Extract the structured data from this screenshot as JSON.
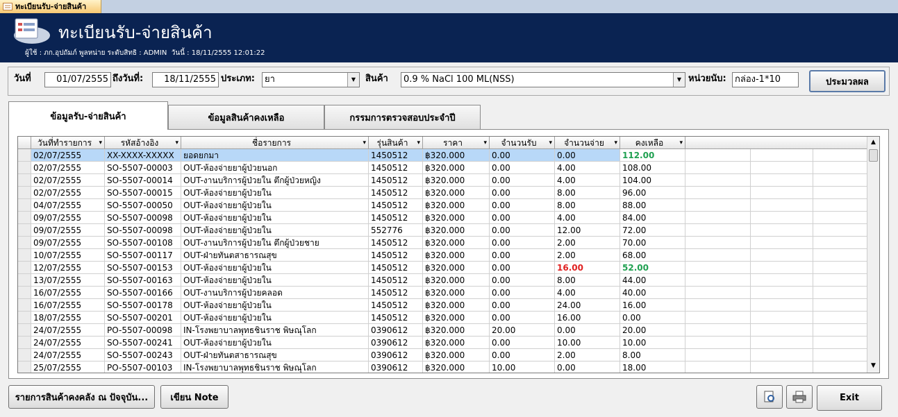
{
  "window": {
    "tab": "ทะเบียนรับ-จ่ายสินค้า"
  },
  "header": {
    "title": "ทะเบียนรับ-จ่ายสินค้า",
    "user_info": "ผู้ใช้ : ภก.อุปถัมภ์ พูลหน่าย ระดับสิทธิ : ADMIN  วันนี้ : 18/11/2555 12:01:22"
  },
  "filters": {
    "from_label": "วันที่",
    "from": "01/07/2555",
    "to_label": "ถึงวันที่:",
    "to": "18/11/2555",
    "type_label": "ประเภท:",
    "type": "ยา",
    "product_label": "สินค้า",
    "product": "0.9 % NaCl 100 ML(NSS)",
    "unit_label": "หน่วยนับ:",
    "unit": "กล่อง-1*10",
    "process_button": "ประมวลผล"
  },
  "tabs": [
    "ข้อมูลรับ-จ่ายสินค้า",
    "ข้อมูลสินค้าคงเหลือ",
    "กรรมการตรวจสอบประจำปี"
  ],
  "table": {
    "columns": [
      "วันที่ทำรายการ",
      "รหัสอ้างอิง",
      "ชื่อรายการ",
      "รุ่นสินค้า",
      "ราคา",
      "จำนวนรับ",
      "จำนวนจ่าย",
      "คงเหลือ"
    ],
    "rows": [
      [
        "02/07/2555",
        "XX-XXXX-XXXXX",
        "ยอดยกมา",
        "1450512",
        "฿320.000",
        "0.00",
        "0.00",
        "112.00"
      ],
      [
        "02/07/2555",
        "SO-5507-00003",
        "OUT-ห้องจ่ายยาผู้ป่วยนอก",
        "1450512",
        "฿320.000",
        "0.00",
        "4.00",
        "108.00"
      ],
      [
        "02/07/2555",
        "SO-5507-00014",
        "OUT-งานบริการผู้ป่วยใน ตึกผู้ป่วยหญิง",
        "1450512",
        "฿320.000",
        "0.00",
        "4.00",
        "104.00"
      ],
      [
        "02/07/2555",
        "SO-5507-00015",
        "OUT-ห้องจ่ายยาผู้ป่วยใน",
        "1450512",
        "฿320.000",
        "0.00",
        "8.00",
        "96.00"
      ],
      [
        "04/07/2555",
        "SO-5507-00050",
        "OUT-ห้องจ่ายยาผู้ป่วยใน",
        "1450512",
        "฿320.000",
        "0.00",
        "8.00",
        "88.00"
      ],
      [
        "09/07/2555",
        "SO-5507-00098",
        "OUT-ห้องจ่ายยาผู้ป่วยใน",
        "1450512",
        "฿320.000",
        "0.00",
        "4.00",
        "84.00"
      ],
      [
        "09/07/2555",
        "SO-5507-00098",
        "OUT-ห้องจ่ายยาผู้ป่วยใน",
        "552776",
        "฿320.000",
        "0.00",
        "12.00",
        "72.00"
      ],
      [
        "09/07/2555",
        "SO-5507-00108",
        "OUT-งานบริการผู้ป่วยใน ตึกผู้ป่วยชาย",
        "1450512",
        "฿320.000",
        "0.00",
        "2.00",
        "70.00"
      ],
      [
        "10/07/2555",
        "SO-5507-00117",
        "OUT-ฝ่ายทันตสาธารณสุข",
        "1450512",
        "฿320.000",
        "0.00",
        "2.00",
        "68.00"
      ],
      [
        "12/07/2555",
        "SO-5507-00153",
        "OUT-ห้องจ่ายยาผู้ป่วยใน",
        "1450512",
        "฿320.000",
        "0.00",
        "16.00",
        "52.00"
      ],
      [
        "13/07/2555",
        "SO-5507-00163",
        "OUT-ห้องจ่ายยาผู้ป่วยใน",
        "1450512",
        "฿320.000",
        "0.00",
        "8.00",
        "44.00"
      ],
      [
        "16/07/2555",
        "SO-5507-00166",
        "OUT-งานบริการผู้ป่วยคลอด",
        "1450512",
        "฿320.000",
        "0.00",
        "4.00",
        "40.00"
      ],
      [
        "16/07/2555",
        "SO-5507-00178",
        "OUT-ห้องจ่ายยาผู้ป่วยใน",
        "1450512",
        "฿320.000",
        "0.00",
        "24.00",
        "16.00"
      ],
      [
        "18/07/2555",
        "SO-5507-00201",
        "OUT-ห้องจ่ายยาผู้ป่วยใน",
        "1450512",
        "฿320.000",
        "0.00",
        "16.00",
        "0.00"
      ],
      [
        "24/07/2555",
        "PO-5507-00098",
        "IN-โรงพยาบาลพุทธชินราช พิษณุโลก",
        "0390612",
        "฿320.000",
        "20.00",
        "0.00",
        "20.00"
      ],
      [
        "24/07/2555",
        "SO-5507-00241",
        "OUT-ห้องจ่ายยาผู้ป่วยใน",
        "0390612",
        "฿320.000",
        "0.00",
        "10.00",
        "10.00"
      ],
      [
        "24/07/2555",
        "SO-5507-00243",
        "OUT-ฝ่ายทันตสาธารณสุข",
        "0390612",
        "฿320.000",
        "0.00",
        "2.00",
        "8.00"
      ],
      [
        "25/07/2555",
        "PO-5507-00103",
        "IN-โรงพยาบาลพุทธชินราช พิษณุโลก",
        "0390612",
        "฿320.000",
        "10.00",
        "0.00",
        "18.00"
      ]
    ]
  },
  "buttons": {
    "stock": "รายการสินค้าคงคลัง ณ ปัจจุบัน...",
    "note": "เขียน Note",
    "exit": "Exit"
  }
}
